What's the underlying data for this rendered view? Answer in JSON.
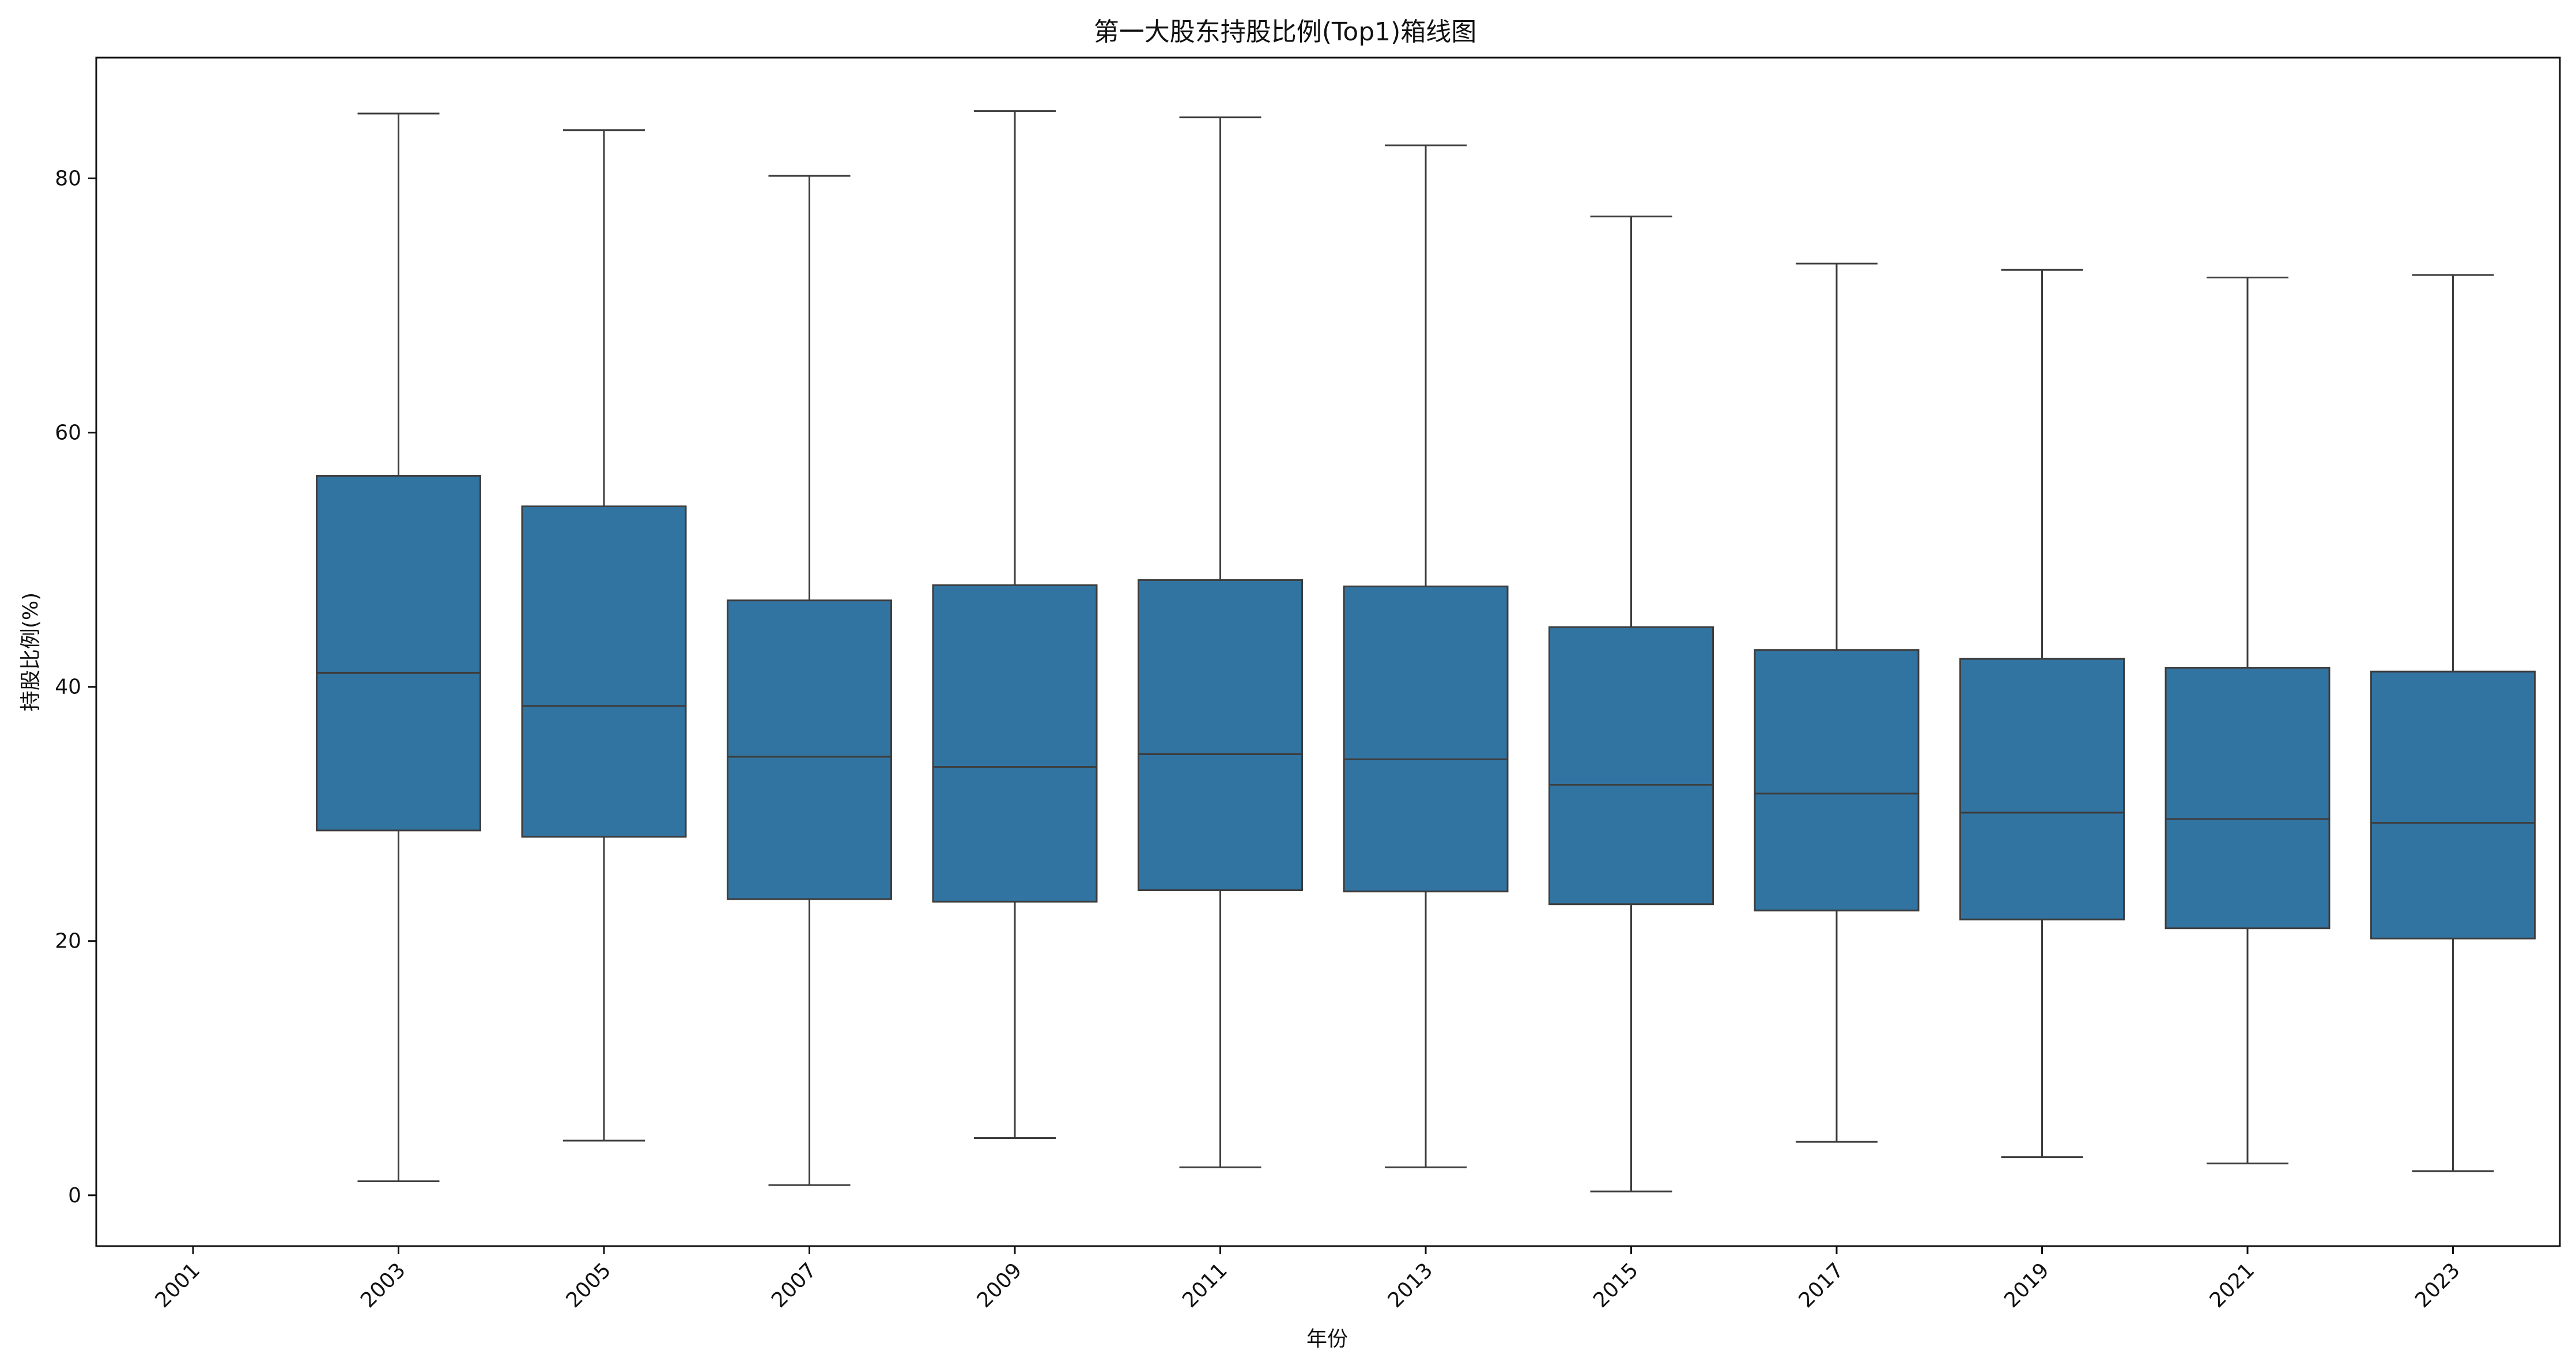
{
  "chart_data": {
    "type": "box",
    "title": "第一大股东持股比例(Top1)箱线图",
    "xlabel": "年份",
    "ylabel": "持股比例(%)",
    "x_ticks": [
      "2001",
      "2003",
      "2005",
      "2007",
      "2009",
      "2011",
      "2013",
      "2015",
      "2017",
      "2019",
      "2021",
      "2023"
    ],
    "y_ticks": [
      0,
      20,
      40,
      60,
      80
    ],
    "ylim": [
      -4,
      89.5
    ],
    "grid": false,
    "legend": "none",
    "colors": {
      "box_fill": "#3274a1",
      "line": "#3d3d3d"
    },
    "boxes": [
      {
        "year": "2003",
        "whisker_low": 1.1,
        "q1": 28.7,
        "median": 41.1,
        "q3": 56.6,
        "whisker_high": 85.1
      },
      {
        "year": "2005",
        "whisker_low": 4.3,
        "q1": 28.2,
        "median": 38.5,
        "q3": 54.2,
        "whisker_high": 83.8
      },
      {
        "year": "2007",
        "whisker_low": 0.8,
        "q1": 23.3,
        "median": 34.5,
        "q3": 46.8,
        "whisker_high": 80.2
      },
      {
        "year": "2009",
        "whisker_low": 4.5,
        "q1": 23.1,
        "median": 33.7,
        "q3": 48.0,
        "whisker_high": 85.3
      },
      {
        "year": "2011",
        "whisker_low": 2.2,
        "q1": 24.0,
        "median": 34.7,
        "q3": 48.4,
        "whisker_high": 84.8
      },
      {
        "year": "2013",
        "whisker_low": 2.2,
        "q1": 23.9,
        "median": 34.3,
        "q3": 47.9,
        "whisker_high": 82.6
      },
      {
        "year": "2015",
        "whisker_low": 0.3,
        "q1": 22.9,
        "median": 32.3,
        "q3": 44.7,
        "whisker_high": 77.0
      },
      {
        "year": "2017",
        "whisker_low": 4.2,
        "q1": 22.4,
        "median": 31.6,
        "q3": 42.9,
        "whisker_high": 73.3
      },
      {
        "year": "2019",
        "whisker_low": 3.0,
        "q1": 21.7,
        "median": 30.1,
        "q3": 42.2,
        "whisker_high": 72.8
      },
      {
        "year": "2021",
        "whisker_low": 2.5,
        "q1": 21.0,
        "median": 29.6,
        "q3": 41.5,
        "whisker_high": 72.2
      },
      {
        "year": "2023",
        "whisker_low": 1.9,
        "q1": 20.2,
        "median": 29.3,
        "q3": 41.2,
        "whisker_high": 72.4
      }
    ]
  }
}
